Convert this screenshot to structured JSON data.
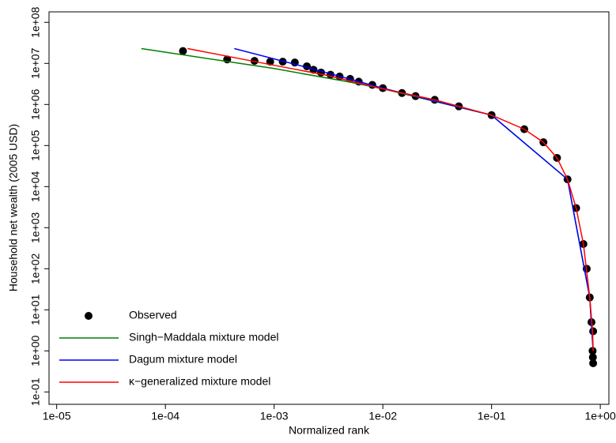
{
  "chart_data": {
    "type": "scatter",
    "x_label": "Normalized rank",
    "y_label": "Household net wealth (2005 USD)",
    "log_x": true,
    "log_y": true,
    "legend": "bottom-left",
    "xlim": [
      8.5e-06,
      1.2
    ],
    "ylim": [
      0.05,
      180000000.0
    ],
    "xticks": [
      {
        "value": 1e-05,
        "label": "1e-05"
      },
      {
        "value": 0.0001,
        "label": "1e-04"
      },
      {
        "value": 0.001,
        "label": "1e-03"
      },
      {
        "value": 0.01,
        "label": "1e-02"
      },
      {
        "value": 0.1,
        "label": "1e-01"
      },
      {
        "value": 1,
        "label": "1e+00"
      }
    ],
    "yticks": [
      {
        "value": 0.1,
        "label": "1e-01"
      },
      {
        "value": 1,
        "label": "1e+00"
      },
      {
        "value": 10,
        "label": "1e+01"
      },
      {
        "value": 100,
        "label": "1e+02"
      },
      {
        "value": 1000,
        "label": "1e+03"
      },
      {
        "value": 10000,
        "label": "1e+04"
      },
      {
        "value": 100000,
        "label": "1e+05"
      },
      {
        "value": 1000000,
        "label": "1e+06"
      },
      {
        "value": 10000000,
        "label": "1e+07"
      },
      {
        "value": 100000000,
        "label": "1e+08"
      }
    ],
    "series": [
      {
        "name": "Observed",
        "type": "scatter",
        "color": "#000000",
        "x": [
          0.000145,
          0.00037,
          0.00066,
          0.00092,
          0.0012,
          0.00155,
          0.002,
          0.0023,
          0.0027,
          0.0033,
          0.004,
          0.005,
          0.006,
          0.008,
          0.01,
          0.015,
          0.02,
          0.03,
          0.05,
          0.1,
          0.2,
          0.3,
          0.4,
          0.5,
          0.6,
          0.7,
          0.75,
          0.8,
          0.83,
          0.85,
          0.855,
          0.86,
          0.86
        ],
        "values": [
          20000000.0,
          12500000.0,
          11500000.0,
          11000000.0,
          11000000.0,
          10500000.0,
          8500000.0,
          7000000.0,
          6000000.0,
          5300000.0,
          4800000.0,
          4200000.0,
          3600000.0,
          3000000.0,
          2500000.0,
          1900000.0,
          1600000.0,
          1300000.0,
          900000.0,
          550000.0,
          250000.0,
          120000.0,
          50000.0,
          15000.0,
          3000.0,
          400,
          100,
          20,
          5,
          1,
          0.7,
          0.5,
          3
        ]
      },
      {
        "name": "Singh−Maddala mixture model",
        "type": "line",
        "color": "#008000",
        "x": [
          6e-05,
          0.001,
          0.005,
          0.01,
          0.1,
          0.5,
          0.8,
          0.86
        ],
        "values": [
          23000000.0,
          7500000.0,
          3500000.0,
          2400000.0,
          550000.0,
          15000.0,
          20,
          1
        ]
      },
      {
        "name": "Dagum mixture model",
        "type": "line",
        "color": "#0000ff",
        "x": [
          0.00043,
          0.002,
          0.01,
          0.1,
          0.5,
          0.8,
          0.86
        ],
        "values": [
          23000000.0,
          8000000.0,
          2500000.0,
          550000.0,
          15000.0,
          20,
          1
        ]
      },
      {
        "name": "κ−generalized mixture model",
        "type": "line",
        "color": "#ff0000",
        "x": [
          0.00016,
          0.001,
          0.003,
          0.01,
          0.03,
          0.1,
          0.2,
          0.3,
          0.4,
          0.5,
          0.6,
          0.7,
          0.8,
          0.85,
          0.86
        ],
        "values": [
          23000000.0,
          9000000.0,
          5200000.0,
          2400000.0,
          1300000.0,
          550000.0,
          250000.0,
          120000.0,
          50000.0,
          15000.0,
          3000.0,
          400,
          20,
          3,
          1
        ]
      }
    ]
  }
}
